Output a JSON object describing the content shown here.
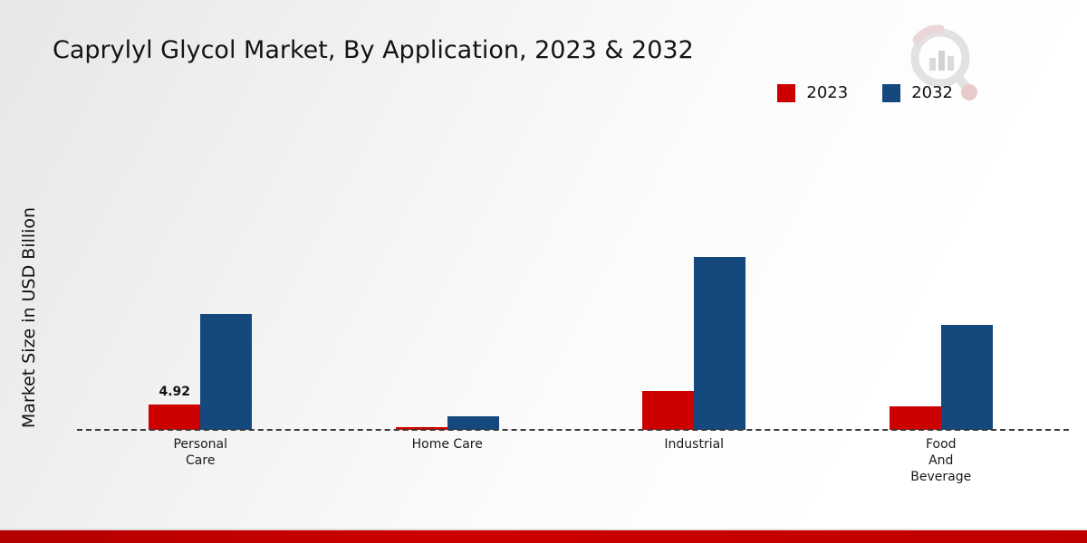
{
  "title": "Caprylyl Glycol Market, By Application, 2023 & 2032",
  "ylabel": "Market Size in USD Billion",
  "colors": {
    "series_2023": "#cc0000",
    "series_2032": "#15497e",
    "bottom_band": "#c00000"
  },
  "legend": [
    {
      "label": "2023",
      "color": "#cc0000"
    },
    {
      "label": "2032",
      "color": "#15497e"
    }
  ],
  "chart_data": {
    "type": "bar",
    "categories": [
      "Personal\nCare",
      "Home Care",
      "Industrial",
      "Food\nAnd\nBeverage"
    ],
    "series": [
      {
        "name": "2023",
        "color": "#cc0000",
        "values": [
          4.92,
          0.55,
          7.6,
          4.6
        ]
      },
      {
        "name": "2032",
        "color": "#15497e",
        "values": [
          22.4,
          2.6,
          33.5,
          20.3
        ]
      }
    ],
    "annotations": [
      {
        "category_index": 0,
        "series": "2023",
        "text": "4.92"
      }
    ],
    "ylabel": "Market Size in USD Billion",
    "ylim": [
      0,
      36
    ],
    "baseline_dashed": true,
    "legend_position": "top-right",
    "grid": false
  },
  "logo": {
    "name": "market-research-future-logo"
  }
}
